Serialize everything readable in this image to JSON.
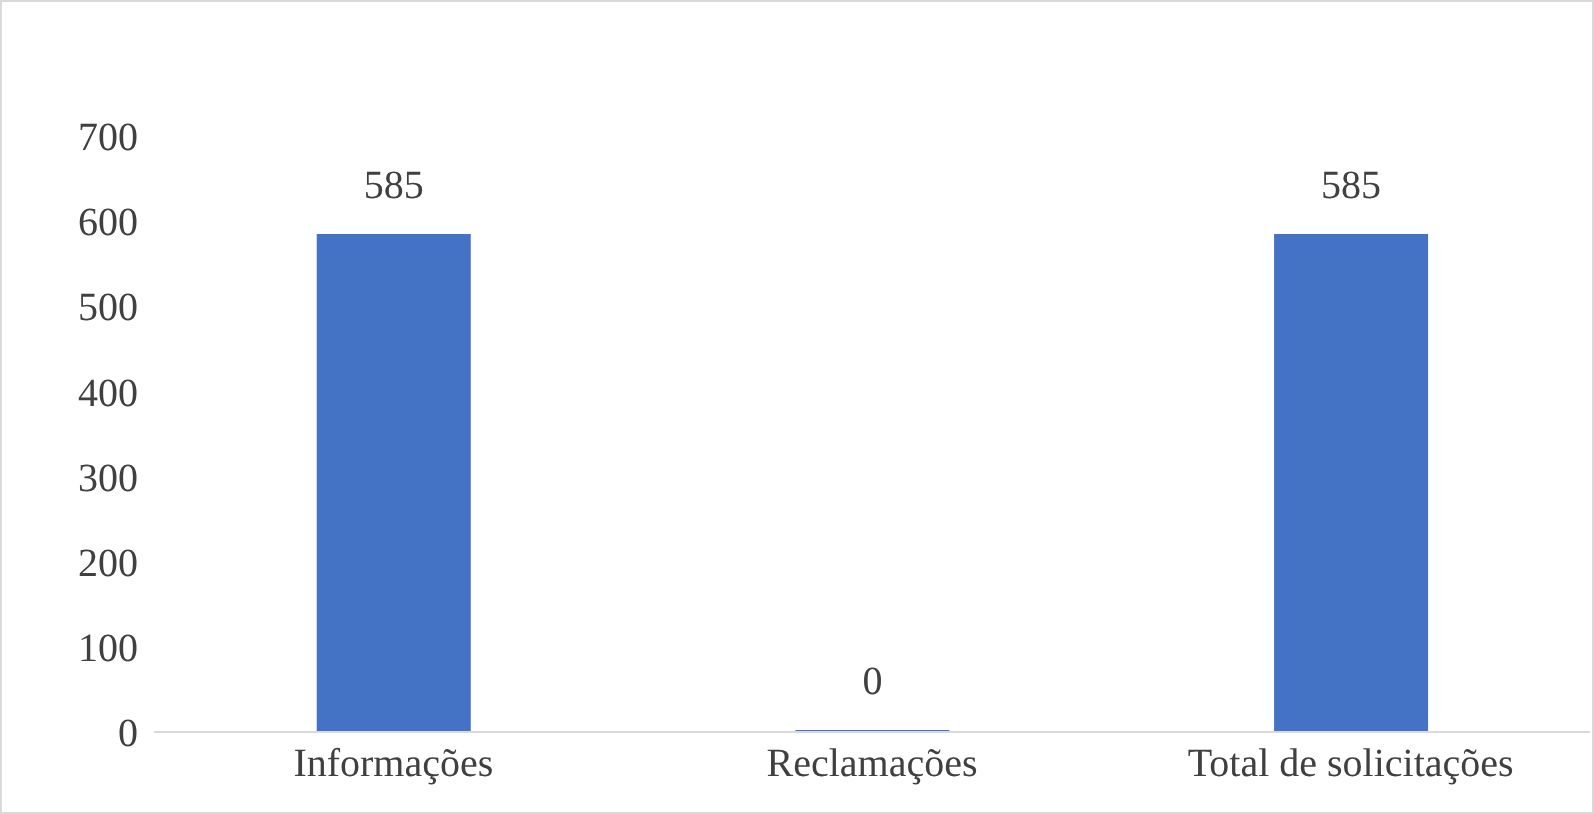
{
  "chart_data": {
    "type": "bar",
    "categories": [
      "Informações",
      "Reclamações",
      "Total de solicitações"
    ],
    "values": [
      585,
      0,
      585
    ],
    "color": "#4472c4",
    "ylim": [
      0,
      700
    ],
    "yticks": [
      0,
      100,
      200,
      300,
      400,
      500,
      600,
      700
    ],
    "grid": false,
    "data_labels": true
  }
}
